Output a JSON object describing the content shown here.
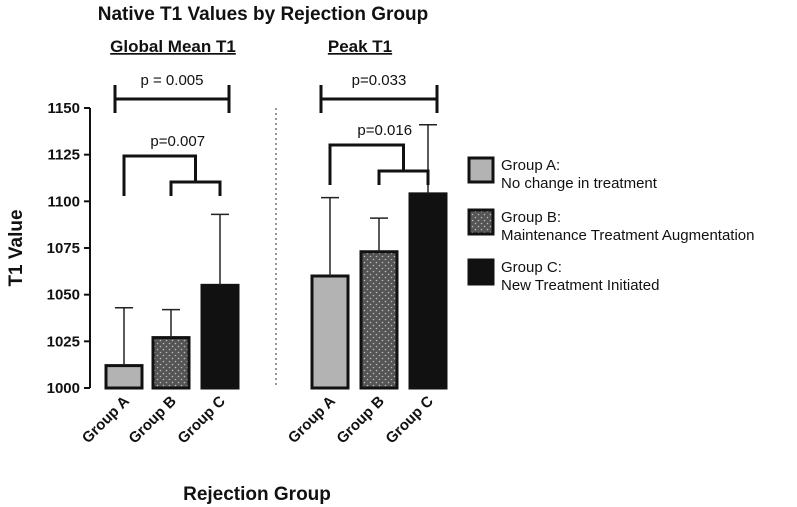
{
  "chart_data": {
    "type": "bar",
    "title": "Native T1 Values by Rejection Group",
    "xlabel": "Rejection Group",
    "ylabel": "T1 Value",
    "ylim": [
      1000,
      1150
    ],
    "yticks": [
      1000,
      1025,
      1050,
      1075,
      1100,
      1125,
      1150
    ],
    "categories": [
      "Group A",
      "Group B",
      "Group C"
    ],
    "panels": [
      {
        "name": "Global Mean T1",
        "values": [
          1012,
          1027,
          1055
        ],
        "error_upper": [
          1043,
          1042,
          1093
        ],
        "comparisons": [
          {
            "label": "p = 0.005",
            "between": "Group A vs Group C"
          },
          {
            "label": "p=0.007",
            "between": "Group A vs Group B + Group C"
          }
        ]
      },
      {
        "name": "Peak  T1",
        "values": [
          1060,
          1073,
          1104
        ],
        "error_upper": [
          1102,
          1091,
          1141
        ],
        "comparisons": [
          {
            "label": "p=0.033",
            "between": "Group A vs Group C"
          },
          {
            "label": "p=0.016",
            "between": "Group A vs Group B + Group C"
          }
        ]
      }
    ],
    "series": [
      {
        "name": "Group  A:",
        "description": "No change in treatment",
        "fill": "#b3b3b3"
      },
      {
        "name": "Group B:",
        "description": "Maintenance  Treatment  Augmentation",
        "fill": "#555555",
        "pattern": "dots"
      },
      {
        "name": "Group  C:",
        "description": "New  Treatment  Initiated",
        "fill": "#111111"
      }
    ],
    "legend_position": "right"
  }
}
